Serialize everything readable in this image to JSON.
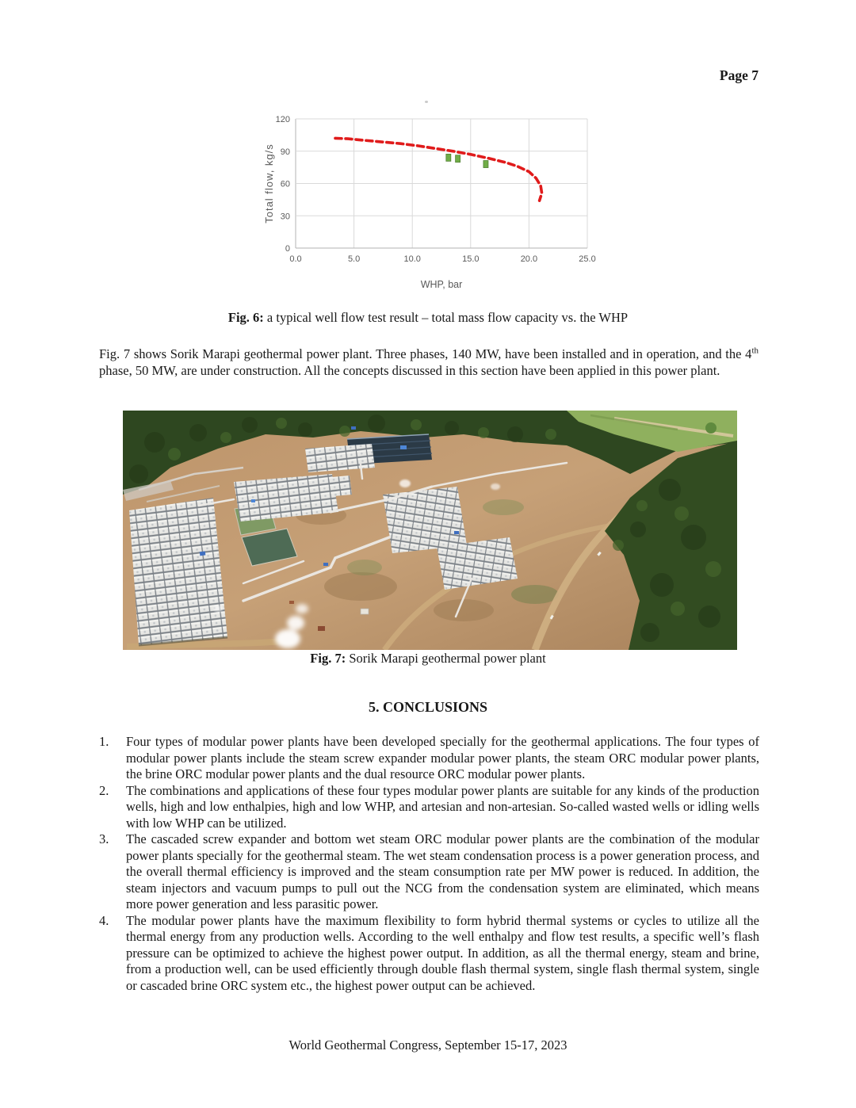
{
  "page": {
    "page_number_label": "Page 7",
    "footer_text": "World Geothermal Congress, September 15-17, 2023"
  },
  "figure6": {
    "caption_label": "Fig. 6:",
    "caption_text": " a typical well flow test result – total mass flow capacity vs. the WHP"
  },
  "intro_paragraph": {
    "part1": "Fig. 7 shows Sorik Marapi geothermal power plant. Three phases, 140 MW, have been installed and in operation, and the 4",
    "superscript": "th",
    "part2": " phase, 50 MW, are under construction. All the concepts discussed in this section have been applied in this power plant."
  },
  "figure7": {
    "caption_label": "Fig. 7:",
    "caption_text": " Sorik Marapi geothermal power plant"
  },
  "conclusions": {
    "heading": "5. CONCLUSIONS",
    "items": [
      {
        "num": "1.",
        "text": "Four types of modular power plants have been developed specially for the geothermal applications. The four types of modular power plants include the steam screw expander modular power plants, the steam ORC modular power plants, the brine ORC modular power plants and the dual resource ORC modular power plants."
      },
      {
        "num": "2.",
        "text": "The combinations and applications of these four types modular power plants are suitable for any kinds of the production wells, high and low enthalpies, high and low WHP, and artesian and non-artesian. So-called wasted wells or idling wells with low WHP can be utilized."
      },
      {
        "num": "3.",
        "text": "The cascaded screw expander and bottom wet steam ORC modular power plants are the combination of the modular power plants specially for the geothermal steam. The wet steam condensation process is a power generation process, and the overall thermal efficiency is improved and the steam consumption rate per MW power is reduced. In addition, the steam injectors and vacuum pumps to pull out the NCG from the condensation system are eliminated, which means more power generation and less parasitic power."
      },
      {
        "num": "4.",
        "text": "The modular power plants have the maximum flexibility to form hybrid thermal systems or cycles to utilize all the thermal energy from any production wells. According to the well enthalpy and flow test results, a specific well’s flash pressure can be optimized to achieve the highest power output. In addition, as all the thermal energy, steam and brine, from a production well, can be used efficiently through double flash thermal system, single flash thermal system, single or cascaded brine ORC system etc., the highest power output can be achieved."
      }
    ]
  },
  "chart_data": {
    "type": "line",
    "title": "",
    "xlabel": "WHP, bar",
    "ylabel": "Total flow, kg/s",
    "xlim": [
      0,
      25
    ],
    "ylim": [
      0,
      120
    ],
    "x_ticks": [
      "0.0",
      "5.0",
      "10.0",
      "15.0",
      "20.0",
      "25.0"
    ],
    "y_ticks": [
      0,
      30,
      60,
      90,
      120
    ],
    "grid": true,
    "legend": "none",
    "grid_color": "#d9d9d9",
    "axis_color": "#b3b3b3",
    "series": [
      {
        "name": "deliverability-curve",
        "kind": "line",
        "style": "dashed",
        "color": "#e01b1b",
        "points": [
          [
            3.4,
            102
          ],
          [
            4.5,
            101.5
          ],
          [
            6,
            100
          ],
          [
            7.5,
            98.5
          ],
          [
            9,
            97
          ],
          [
            10.5,
            95
          ],
          [
            12,
            92.5
          ],
          [
            13.5,
            90
          ],
          [
            15,
            87
          ],
          [
            16.5,
            83.5
          ],
          [
            18,
            79.5
          ],
          [
            19,
            76
          ],
          [
            20,
            71
          ],
          [
            20.6,
            65
          ],
          [
            21,
            58
          ],
          [
            21.1,
            51
          ],
          [
            20.9,
            44
          ]
        ]
      },
      {
        "name": "flow-test-data",
        "kind": "scatter",
        "marker": "square",
        "color": "#70ad47",
        "edge_color": "#538135",
        "points": [
          [
            13.1,
            84
          ],
          [
            13.9,
            83
          ],
          [
            16.3,
            78
          ]
        ]
      }
    ]
  }
}
